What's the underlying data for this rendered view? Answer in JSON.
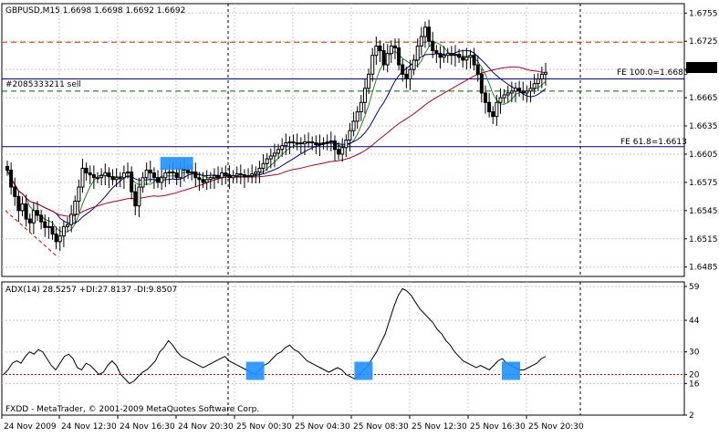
{
  "chart_data": {
    "type": "candlestick",
    "symbol_header": "GBPUSD,M15  1.6698 1.6698 1.6692 1.6692",
    "copyright": "FXDD - MetaTrader, © 2001-2009 MetaQuotes Software Corp.",
    "price_axis": {
      "range": [
        1.6475,
        1.6765
      ],
      "ticks": [
        "1.6755",
        "1.6725",
        "1.6695",
        "1.6665",
        "1.6635",
        "1.6605",
        "1.6575",
        "1.6545",
        "1.6515",
        "1.6485"
      ]
    },
    "time_axis": {
      "labels": [
        "24 Nov 2009",
        "24 Nov 12:30",
        "24 Nov 16:30",
        "24 Nov 20:30",
        "25 Nov 00:30",
        "25 Nov 04:30",
        "25 Nov 08:30",
        "25 Nov 12:30",
        "25 Nov 16:30",
        "25 Nov 20:30"
      ]
    },
    "current_price": "1.6692",
    "order_line": {
      "label": "#2085333211 sell",
      "price": 1.6685
    },
    "fibo_levels": [
      {
        "label": "FE 100.0=1.6685",
        "price": 1.6685
      },
      {
        "label": "FE 61.8=1.6613",
        "price": 1.6613
      }
    ],
    "dashed_levels": [
      {
        "price": 1.6724,
        "color": "#cc3300"
      },
      {
        "price": 1.6672,
        "color": "#006600"
      }
    ],
    "close_series": [
      1.6588,
      1.657,
      1.656,
      1.6545,
      1.6552,
      1.6536,
      1.6532,
      1.6545,
      1.654,
      1.6533,
      1.6527,
      1.6528,
      1.652,
      1.6512,
      1.6518,
      1.6528,
      1.653,
      1.6541,
      1.6555,
      1.657,
      1.659,
      1.6585,
      1.6583,
      1.658,
      1.658,
      1.6582,
      1.6585,
      1.6581,
      1.6578,
      1.658,
      1.658,
      1.6585,
      1.6586,
      1.6565,
      1.655,
      1.657,
      1.658,
      1.6588,
      1.6585,
      1.658,
      1.6575,
      1.658,
      1.6585,
      1.6586,
      1.6585,
      1.658,
      1.659,
      1.6588,
      1.6585,
      1.6586,
      1.658,
      1.6578,
      1.6575,
      1.6578,
      1.658,
      1.6582,
      1.658,
      1.6585,
      1.6583,
      1.658,
      1.6582,
      1.6584,
      1.6583,
      1.6581,
      1.6582,
      1.6584,
      1.6586,
      1.659,
      1.6595,
      1.66,
      1.6603,
      1.6606,
      1.661,
      1.6614,
      1.6617,
      1.6618,
      1.6617,
      1.6617,
      1.6616,
      1.6618,
      1.6618,
      1.6617,
      1.6615,
      1.6616,
      1.6617,
      1.6618,
      1.6619,
      1.661,
      1.6605,
      1.6612,
      1.662,
      1.663,
      1.664,
      1.665,
      1.666,
      1.6675,
      1.669,
      1.671,
      1.672,
      1.6715,
      1.67,
      1.6712,
      1.672,
      1.6718,
      1.67,
      1.669,
      1.6685,
      1.6695,
      1.6705,
      1.672,
      1.673,
      1.674,
      1.6725,
      1.6715,
      1.6712,
      1.6708,
      1.671,
      1.6712,
      1.671,
      1.6711,
      1.6708,
      1.6705,
      1.6708,
      1.671,
      1.67,
      1.669,
      1.667,
      1.666,
      1.665,
      1.6645,
      1.666,
      1.6665,
      1.6668,
      1.667,
      1.6672,
      1.6675,
      1.6672,
      1.667,
      1.6672,
      1.6675,
      1.668,
      1.6685,
      1.669,
      1.6692
    ],
    "ma_fast_color": "#228b22",
    "ma_mid_color": "#000080",
    "ma_slow_color": "#aa0022",
    "adx": {
      "header": "ADX(14) 28.5257 +DI:27.8137 -DI:9.8507",
      "range": [
        2,
        61
      ],
      "ticks": [
        "59",
        "44",
        "30",
        "20",
        "16",
        "2"
      ],
      "level": 20,
      "values": [
        20,
        22,
        25,
        26,
        25,
        28,
        30,
        29,
        31,
        30,
        27,
        24,
        22,
        25,
        28,
        29,
        27,
        23,
        22,
        25,
        24,
        22,
        20,
        21,
        24,
        26,
        24,
        20,
        18,
        16,
        17,
        19,
        21,
        22,
        24,
        26,
        30,
        32,
        35,
        33,
        30,
        28,
        27,
        26,
        25,
        24,
        23,
        24,
        25,
        26,
        27,
        28,
        26,
        25,
        24,
        23,
        22,
        21,
        20,
        22,
        24,
        25,
        27,
        29,
        30,
        32,
        33,
        31,
        30,
        28,
        26,
        25,
        24,
        23,
        22,
        21,
        22,
        23,
        22,
        20,
        19,
        18,
        20,
        22,
        24,
        27,
        30,
        34,
        38,
        44,
        50,
        55,
        58,
        57,
        55,
        52,
        49,
        47,
        45,
        43,
        40,
        38,
        35,
        33,
        30,
        28,
        26,
        25,
        24,
        23,
        24,
        23,
        22,
        24,
        26,
        27,
        25,
        24,
        23,
        22,
        22,
        23,
        24,
        25,
        27,
        28
      ]
    },
    "signal_boxes": [
      {
        "pane": "price",
        "index": 45
      },
      {
        "pane": "adx",
        "index": 58
      },
      {
        "pane": "adx",
        "index": 83
      },
      {
        "pane": "adx",
        "index": 117
      }
    ]
  }
}
